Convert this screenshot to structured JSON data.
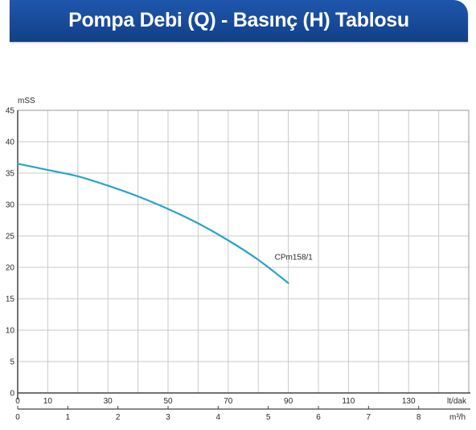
{
  "header": {
    "title": "Pompa Debi (Q) - Basınç (H) Tablosu"
  },
  "chart_data": {
    "type": "line",
    "title": "Pompa Debi (Q) - Basınç (H) Tablosu",
    "ylabel": "mSS",
    "ylim": [
      0,
      45
    ],
    "yticks": [
      "0",
      "5",
      "10",
      "15",
      "20",
      "25",
      "30",
      "35",
      "40",
      "45"
    ],
    "xlim": [
      0,
      150
    ],
    "x_unit_primary": "lt/dak",
    "xticks_primary": [
      "0",
      "10",
      "30",
      "50",
      "70",
      "90",
      "110",
      "130",
      "lt/dak"
    ],
    "x_unit_secondary": "m³/h",
    "xlim_secondary": [
      0,
      9
    ],
    "xticks_secondary": [
      "0",
      "1",
      "2",
      "3",
      "4",
      "5",
      "6",
      "7",
      "8",
      "m³/h"
    ],
    "grid": true,
    "series": [
      {
        "name": "CPm158/1",
        "color": "#29a3cc",
        "x": [
          0,
          10,
          20,
          30,
          40,
          50,
          60,
          70,
          80,
          90
        ],
        "y": [
          36.5,
          35.5,
          34.5,
          33.0,
          31.3,
          29.3,
          27.0,
          24.3,
          21.2,
          17.5
        ]
      }
    ]
  }
}
